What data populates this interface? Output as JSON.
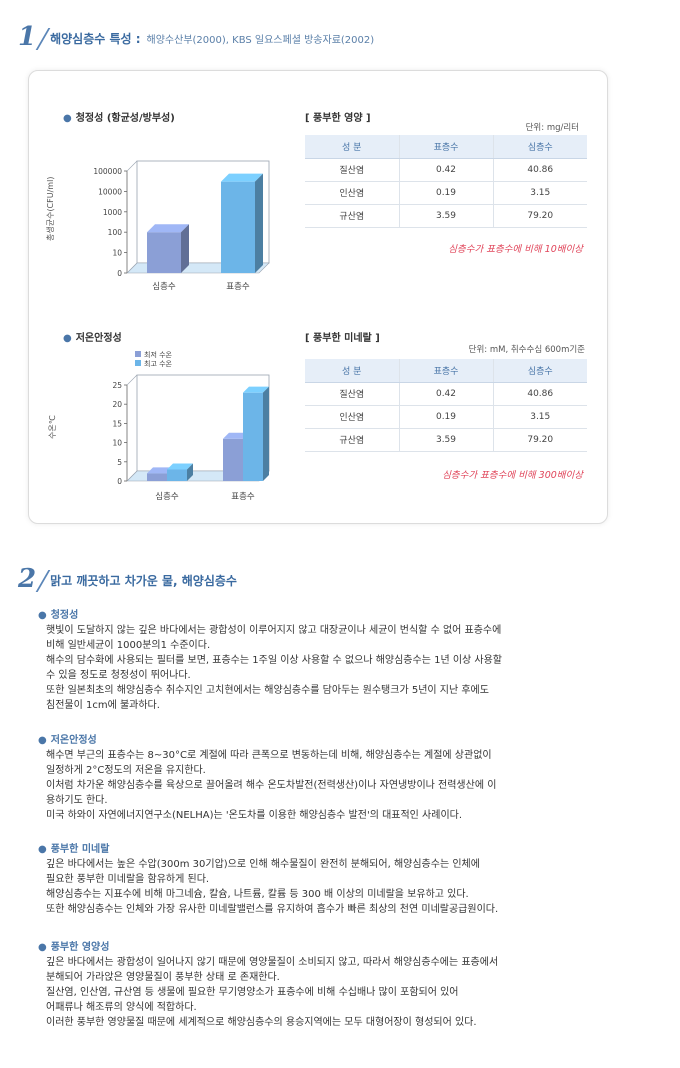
{
  "section1": {
    "number": "1",
    "title": "해양심층수 특성 :",
    "subtitle": "해양수산부(2000), KBS 일요스페셜 방송자료(2002)"
  },
  "chart1": {
    "title": "청정성 (항균성/방부성)",
    "bullet": "●"
  },
  "chart2": {
    "title": "저온안정성",
    "bullet": "●"
  },
  "chart_data": [
    {
      "type": "bar",
      "title": "청정성 (항균성/방부성)",
      "ylabel": "총생균수(CFU/ml)",
      "xlabel": "",
      "yscale": "log",
      "yticks": [
        "0",
        "10",
        "100",
        "1000",
        "10000",
        "100000"
      ],
      "categories": [
        "심층수",
        "표층수"
      ],
      "values": [
        100,
        30000
      ],
      "colors": [
        "#8b9fd6",
        "#6cb5e8"
      ]
    },
    {
      "type": "bar",
      "title": "저온안정성",
      "ylabel": "수온℃",
      "xlabel": "",
      "ylim": [
        0,
        25
      ],
      "yticks": [
        "0",
        "5",
        "10",
        "15",
        "20",
        "25"
      ],
      "categories": [
        "심층수",
        "표층수"
      ],
      "series": [
        {
          "name": "최저 수온",
          "values": [
            2,
            11
          ],
          "color": "#8b9fd6"
        },
        {
          "name": "최고 수온",
          "values": [
            3,
            23
          ],
          "color": "#6cb5e8"
        }
      ],
      "legend": "top-left"
    }
  ],
  "table1": {
    "title": "[ 풍부한 영양 ]",
    "unit": "단위: mg/리터",
    "headers": [
      "성  분",
      "표층수",
      "심층수"
    ],
    "rows": [
      [
        "질산염",
        "0.42",
        "40.86"
      ],
      [
        "인산염",
        "0.19",
        "3.15"
      ],
      [
        "규산염",
        "3.59",
        "79.20"
      ]
    ],
    "note": "심층수가 표층수에 비해 10배이상"
  },
  "table2": {
    "title": "[ 풍부한 미네랄 ]",
    "unit": "단위: mM, 취수수심 600m기준",
    "headers": [
      "성  분",
      "표층수",
      "심층수"
    ],
    "rows": [
      [
        "질산염",
        "0.42",
        "40.86"
      ],
      [
        "인산염",
        "0.19",
        "3.15"
      ],
      [
        "규산염",
        "3.59",
        "79.20"
      ]
    ],
    "note": "심층수가 표층수에 비해 300배이상"
  },
  "section2": {
    "number": "2",
    "title": "맑고 깨끗하고 차가운 물, 해양심층수"
  },
  "topics": [
    {
      "bullet": "●",
      "title": "청정성",
      "lines": [
        "햇빛이 도달하지 않는 깊은 바다에서는 광합성이 이루어지지 않고 대장균이나 세균이 번식할 수 없어 표층수에",
        "비해 일반세균이 1000분의1 수준이다.",
        "해수의 담수화에 사용되는 필터를 보면, 표층수는 1주일 이상 사용할 수 없으나 해양심층수는 1년 이상 사용할",
        "수 있을 정도로 청정성이 뛰어나다.",
        "또한 일본최초의 해양심층수 취수지인 고치현에서는 해양심층수를 담아두는 원수탱크가 5년이 지난 후에도",
        "침전물이 1cm에 불과하다."
      ]
    },
    {
      "bullet": "●",
      "title": "저온안정성",
      "lines": [
        "해수면 부근의 표층수는 8~30°C로 계절에 따라 큰폭으로 변동하는데 비해, 해양심층수는 계절에 상관없이",
        "일정하게 2°C정도의 저온을 유지한다.",
        "이처럼 차가운 해양심층수를 육상으로 끌어올려 해수 온도차발전(전력생산)이나 자연냉방이나 전력생산에 이",
        "용하기도 한다.",
        "미국 하와이 자연에너지연구소(NELHA)는 '온도차를 이용한 해양심층수 발전'의 대표적인 사례이다."
      ]
    },
    {
      "bullet": "●",
      "title": "풍부한 미네랄",
      "lines": [
        "깊은 바다에서는 높은 수압(300m 30기압)으로 인해 해수물질이 완전히 분해되어, 해양심층수는 인체에",
        "필요한 풍부한 미네랄을 함유하게 된다.",
        "해양심층수는 지표수에 비해 마그네슘, 칼슘, 나트륨, 칼륨 등 300 배 이상의 미네랄을 보유하고 있다.",
        "또한 해양심층수는 인체와 가장 유사한 미네랄밸런스를 유지하여 흡수가 빠른 최상의 천연 미네랄공급원이다."
      ]
    },
    {
      "bullet": "●",
      "title": "풍부한 영양성",
      "lines": [
        "깊은 바다에서는 광합성이 일어나지 않기 때문에 영양물질이 소비되지 않고, 따라서 해양심층수에는 표층에서",
        "분해되어 가라앉은 영양물질이 풍부한 상태 로 존재한다.",
        "질산염, 인산염, 규산염 등 생물에 필요한 무기영양소가 표층수에 비해 수십배나 많이 포함되어 있어",
        "어패류나 해조류의 양식에 적합하다.",
        "이러한 풍부한 영양물질 때문에 세계적으로 해양심층수의 용승지역에는 모두 대형어장이 형성되어 있다."
      ]
    }
  ]
}
